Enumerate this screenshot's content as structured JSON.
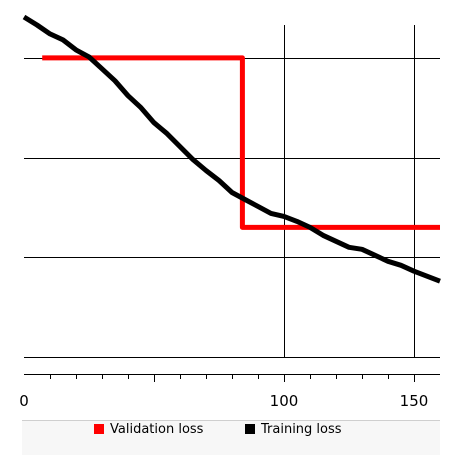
{
  "chart_data": {
    "type": "line",
    "title": "",
    "xlabel": "",
    "ylabel": "",
    "xlim": [
      0,
      160
    ],
    "ylim": [
      0.0,
      3.5
    ],
    "x_ticks": [
      {
        "value": 0,
        "label": "0"
      },
      {
        "value": 100,
        "label": "100"
      },
      {
        "value": 150,
        "label": "150"
      }
    ],
    "x_gridlines": [
      100,
      150
    ],
    "y_gridlines": [
      0.0,
      1.0,
      2.0,
      3.0
    ],
    "grid": true,
    "legend_placement": "bottom",
    "series": [
      {
        "name": "Validation loss",
        "color": "#ff0000",
        "x": [
          7,
          37,
          70,
          84,
          84,
          130,
          160
        ],
        "y": [
          3.0,
          3.0,
          3.0,
          3.0,
          1.3,
          1.3,
          1.3
        ]
      },
      {
        "name": "Training loss",
        "color": "#000000",
        "x": [
          0,
          5,
          10,
          15,
          20,
          25,
          30,
          35,
          40,
          45,
          50,
          55,
          60,
          65,
          70,
          75,
          80,
          85,
          90,
          95,
          100,
          105,
          110,
          115,
          120,
          125,
          130,
          135,
          140,
          145,
          150,
          155,
          160
        ],
        "y": [
          3.41,
          3.33,
          3.24,
          3.18,
          3.08,
          3.01,
          2.89,
          2.77,
          2.62,
          2.5,
          2.35,
          2.24,
          2.11,
          1.98,
          1.87,
          1.77,
          1.65,
          1.58,
          1.51,
          1.44,
          1.41,
          1.36,
          1.3,
          1.22,
          1.16,
          1.1,
          1.08,
          1.02,
          0.96,
          0.92,
          0.86,
          0.81,
          0.76
        ]
      }
    ]
  }
}
